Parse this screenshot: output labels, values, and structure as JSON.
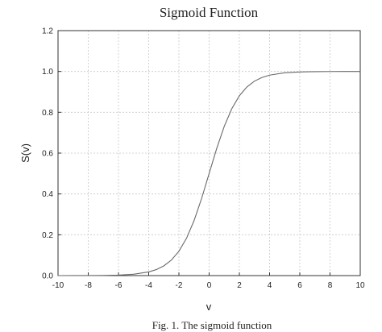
{
  "chart_data": {
    "type": "line",
    "title": "Sigmoid Function",
    "xlabel": "v",
    "ylabel": "S(v)",
    "caption": "Fig. 1. The sigmoid function",
    "xlim": [
      -10,
      10
    ],
    "ylim": [
      0,
      1.2
    ],
    "xticks": [
      -10,
      -8,
      -6,
      -4,
      -2,
      0,
      2,
      4,
      6,
      8,
      10
    ],
    "yticks": [
      0.0,
      0.2,
      0.4,
      0.6,
      0.8,
      1.0,
      1.2
    ],
    "ytick_labels": [
      "0.0",
      "0.2",
      "0.4",
      "0.6",
      "0.8",
      "1.0",
      "1.2"
    ],
    "grid": true,
    "series": [
      {
        "color": "#6a6a6a",
        "x": [
          -10,
          -9,
          -8,
          -7,
          -6,
          -5,
          -4,
          -3.5,
          -3,
          -2.5,
          -2,
          -1.5,
          -1,
          -0.5,
          0,
          0.5,
          1,
          1.5,
          2,
          2.5,
          3,
          3.5,
          4,
          5,
          6,
          7,
          8,
          9,
          10
        ],
        "y": [
          4.54e-05,
          0.000123,
          0.000335,
          0.000911,
          0.00247,
          0.00669,
          0.018,
          0.0293,
          0.0474,
          0.0759,
          0.1192,
          0.1824,
          0.2689,
          0.3775,
          0.5,
          0.6225,
          0.7311,
          0.8176,
          0.8808,
          0.9241,
          0.9526,
          0.9707,
          0.982,
          0.9933,
          0.9975,
          0.9991,
          0.99966,
          0.99988,
          0.99995
        ]
      }
    ]
  }
}
